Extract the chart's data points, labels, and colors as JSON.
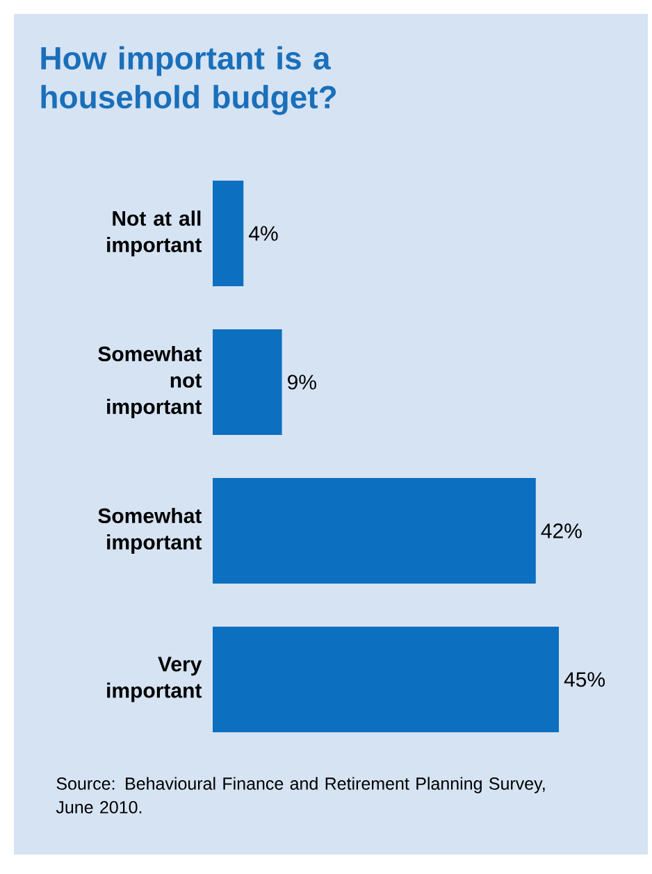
{
  "chart_data": {
    "type": "bar",
    "orientation": "horizontal",
    "title": "How important is a household budget?",
    "categories": [
      "Not at all important",
      "Somewhat not important",
      "Somewhat important",
      "Very important"
    ],
    "values": [
      4,
      9,
      42,
      45
    ],
    "value_labels": [
      "4%",
      "9%",
      "42%",
      "45%"
    ],
    "color": "#0d6fbf",
    "annotations": [
      "Source: Behavioural Finance and Retirement Planning Survey, June 2010."
    ]
  }
}
